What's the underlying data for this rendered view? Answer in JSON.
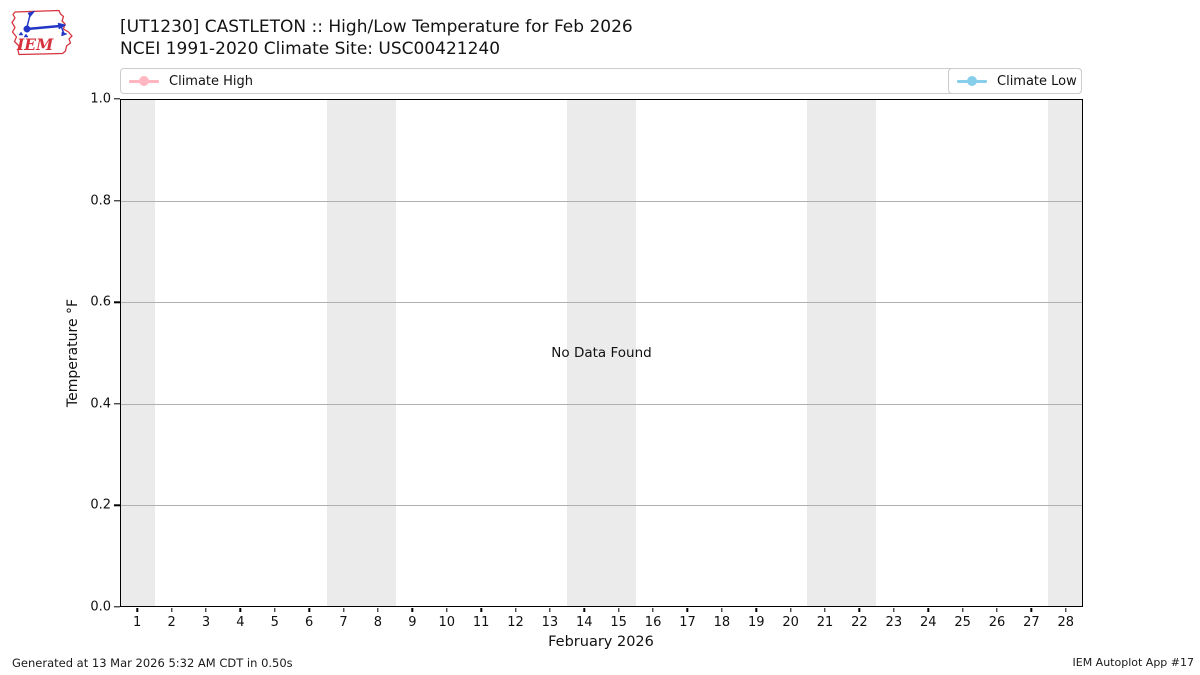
{
  "header": {
    "title": "[UT1230] CASTLETON :: High/Low Temperature for Feb 2026",
    "subtitle": "NCEI 1991-2020 Climate Site: USC00421240",
    "logo_text": "IEM"
  },
  "legend": {
    "entries": [
      {
        "label": "Climate High",
        "color": "#ffb6c1"
      },
      {
        "label": "Climate Low",
        "color": "#87ceeb"
      }
    ]
  },
  "chart_data": {
    "type": "line",
    "title": "[UT1230] CASTLETON :: High/Low Temperature for Feb 2026",
    "subtitle": "NCEI 1991-2020 Climate Site: USC00421240",
    "xlabel": "February 2026",
    "ylabel": "Temperature °F",
    "ylim": [
      0.0,
      1.0
    ],
    "y_ticks": [
      "0.0",
      "0.2",
      "0.4",
      "0.6",
      "0.8",
      "1.0"
    ],
    "x_ticks": [
      1,
      2,
      3,
      4,
      5,
      6,
      7,
      8,
      9,
      10,
      11,
      12,
      13,
      14,
      15,
      16,
      17,
      18,
      19,
      20,
      21,
      22,
      23,
      24,
      25,
      26,
      27,
      28
    ],
    "series": [
      {
        "name": "Climate High",
        "color": "#ffb6c1",
        "values": []
      },
      {
        "name": "Climate Low",
        "color": "#87ceeb",
        "values": []
      }
    ],
    "annotation": "No Data Found",
    "weekend_bands": [
      [
        1,
        1
      ],
      [
        7,
        8
      ],
      [
        14,
        15
      ],
      [
        21,
        22
      ],
      [
        28,
        28
      ]
    ],
    "band_color": "#ebebeb",
    "grid": "horizontal",
    "gridline_color": "#b0b0b0",
    "legend_position": "top, spanning plot width; Climate High left, Climate Low right"
  },
  "footer": {
    "left": "Generated at 13 Mar 2026 5:32 AM CDT in 0.50s",
    "right": "IEM Autoplot App #17"
  }
}
